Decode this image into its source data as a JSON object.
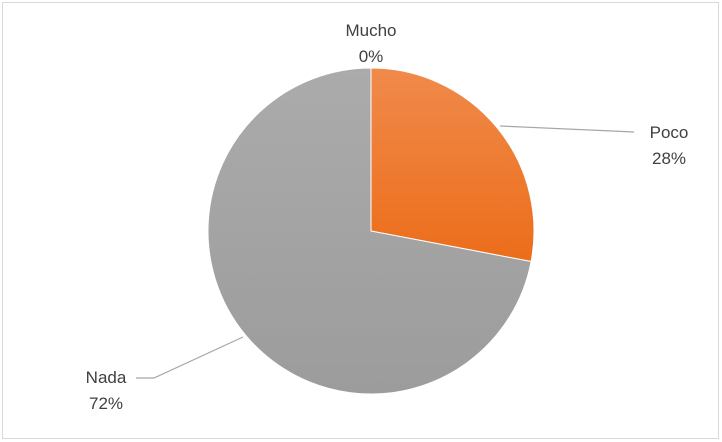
{
  "chart_data": {
    "type": "pie",
    "title": "",
    "categories": [
      "Mucho",
      "Poco",
      "Nada"
    ],
    "values": [
      0,
      28,
      72
    ],
    "value_labels": [
      "0%",
      "28%",
      "72%"
    ],
    "unit": "%",
    "colors": [
      "#4472c4",
      "#ed7d31",
      "#a5a5a5"
    ],
    "start_angle": "12 o'clock",
    "direction": "clockwise",
    "data_labels": "category and percentage, outside with leader lines",
    "legend": "none",
    "grid": false
  }
}
